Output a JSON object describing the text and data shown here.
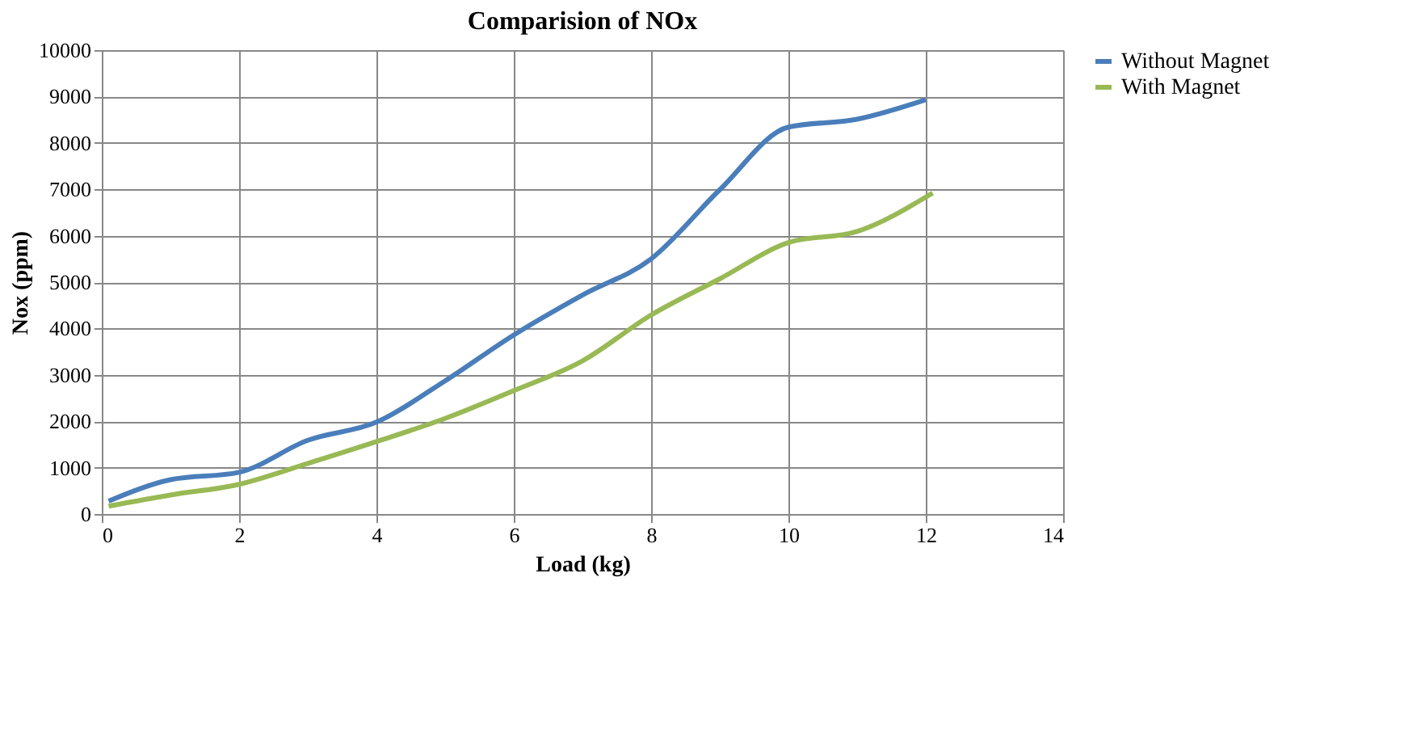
{
  "chart_data": {
    "type": "line",
    "title": "Comparision of NOx",
    "xlabel": "Load (kg)",
    "ylabel": "Nox (ppm)",
    "xlim": [
      0,
      14
    ],
    "xticks": [
      0,
      2,
      4,
      6,
      8,
      10,
      12,
      14
    ],
    "ylim": [
      0,
      10000
    ],
    "yticks": [
      0,
      1000,
      2000,
      3000,
      4000,
      5000,
      6000,
      7000,
      8000,
      9000,
      10000
    ],
    "grid": true,
    "legend": "right",
    "marker": "none",
    "series": [
      {
        "name": "Without Magnet",
        "color": "#4a7ebb",
        "x": [
          0.1,
          1,
          2,
          3,
          4,
          5,
          6,
          7,
          8,
          9,
          10,
          11,
          12
        ],
        "values": [
          280,
          740,
          900,
          1590,
          1980,
          2870,
          3860,
          4720,
          5500,
          6990,
          8340,
          8510,
          8930
        ]
      },
      {
        "name": "With Magnet",
        "color": "#98b954",
        "x": [
          0.1,
          1,
          2,
          3,
          4,
          5,
          6,
          7,
          8,
          9,
          10,
          11,
          12.1
        ],
        "values": [
          170,
          410,
          640,
          1090,
          1560,
          2060,
          2660,
          3300,
          4290,
          5070,
          5850,
          6090,
          6920
        ]
      }
    ]
  }
}
